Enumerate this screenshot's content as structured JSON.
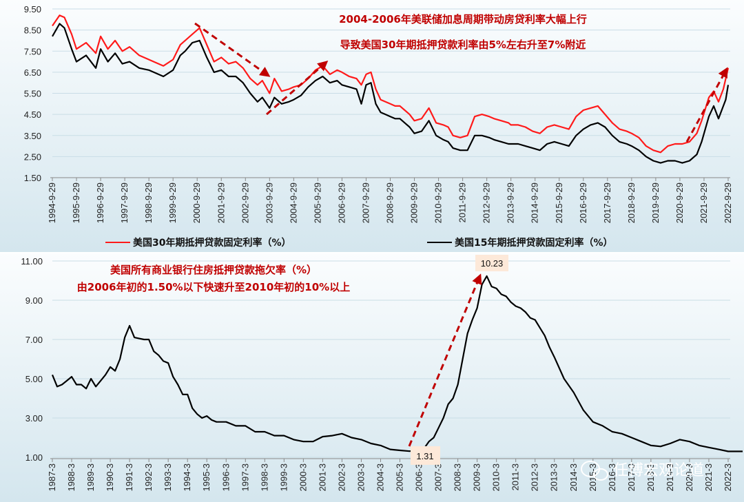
{
  "watermark": "任博宏观论道",
  "colors": {
    "red": "#ff1a1a",
    "black": "#000000",
    "arrow": "#c00000",
    "grid": "#c9dde6"
  },
  "chart_data": [
    {
      "type": "line",
      "ylim": [
        1.5,
        9.5
      ],
      "yticks": [
        "9.50",
        "8.50",
        "7.50",
        "6.50",
        "5.50",
        "4.50",
        "3.50",
        "2.50",
        "1.50"
      ],
      "categories": [
        "1994-9-29",
        "1995-9-29",
        "1996-9-29",
        "1997-9-29",
        "1998-9-29",
        "1999-9-29",
        "2000-9-29",
        "2001-9-29",
        "2002-9-29",
        "2003-9-29",
        "2004-9-29",
        "2005-9-29",
        "2006-9-29",
        "2007-9-29",
        "2008-9-29",
        "2009-9-29",
        "2010-9-29",
        "2011-9-29",
        "2012-9-29",
        "2013-9-29",
        "2014-9-29",
        "2015-9-29",
        "2016-9-29",
        "2017-9-29",
        "2018-9-29",
        "2019-9-29",
        "2020-9-29",
        "2021-9-29",
        "2022-9-29"
      ],
      "annotation": [
        "2004-2006年美联储加息周期带动房贷利率大幅上行",
        "导致美国30年期抵押贷款利率由5%左右升至7%附近"
      ],
      "series": [
        {
          "name": "美国30年期抵押贷款固定利率（%）",
          "color": "#ff1a1a",
          "x": [
            0,
            0.3,
            0.5,
            0.8,
            1.0,
            1.4,
            1.8,
            2.0,
            2.3,
            2.6,
            2.9,
            3.2,
            3.6,
            4.0,
            4.2,
            4.6,
            5.0,
            5.3,
            5.5,
            5.8,
            6.1,
            6.4,
            6.7,
            7.0,
            7.3,
            7.6,
            7.9,
            8.2,
            8.5,
            8.7,
            9.0,
            9.2,
            9.5,
            9.8,
            10.0,
            10.3,
            10.6,
            10.9,
            11.2,
            11.5,
            11.8,
            12.0,
            12.3,
            12.6,
            12.8,
            13.0,
            13.2,
            13.4,
            13.6,
            13.8,
            14.0,
            14.2,
            14.4,
            14.6,
            14.8,
            15.0,
            15.3,
            15.6,
            15.9,
            16.2,
            16.4,
            16.6,
            16.9,
            17.2,
            17.5,
            17.8,
            18.1,
            18.3,
            18.6,
            18.9,
            19.0,
            19.3,
            19.6,
            19.9,
            20.2,
            20.5,
            20.8,
            21.1,
            21.4,
            21.7,
            22.0,
            22.3,
            22.6,
            22.9,
            23.2,
            23.5,
            23.8,
            24.0,
            24.3,
            24.6,
            24.9,
            25.2,
            25.5,
            25.8,
            26.1,
            26.4,
            26.7,
            26.9,
            27.2,
            27.4,
            27.6,
            27.8,
            27.9,
            28.0
          ],
          "values": [
            8.7,
            9.2,
            9.1,
            8.3,
            7.6,
            7.9,
            7.4,
            8.2,
            7.6,
            8.0,
            7.5,
            7.7,
            7.3,
            7.1,
            7.0,
            6.8,
            7.1,
            7.8,
            8.0,
            8.3,
            8.6,
            7.8,
            7.0,
            7.2,
            6.9,
            7.0,
            6.7,
            6.2,
            5.9,
            6.1,
            5.5,
            6.2,
            5.6,
            5.7,
            5.8,
            5.9,
            6.2,
            6.6,
            6.8,
            6.4,
            6.6,
            6.5,
            6.3,
            6.2,
            5.9,
            6.4,
            6.5,
            5.7,
            5.2,
            5.1,
            5.0,
            4.9,
            4.9,
            4.7,
            4.5,
            4.2,
            4.3,
            4.8,
            4.1,
            4.0,
            3.9,
            3.5,
            3.4,
            3.5,
            4.4,
            4.5,
            4.4,
            4.3,
            4.2,
            4.1,
            4.0,
            4.0,
            3.9,
            3.7,
            3.6,
            3.9,
            4.0,
            3.9,
            3.8,
            4.4,
            4.7,
            4.8,
            4.9,
            4.5,
            4.1,
            3.8,
            3.7,
            3.6,
            3.4,
            3.0,
            2.8,
            2.7,
            3.0,
            3.1,
            3.1,
            3.2,
            3.6,
            4.2,
            5.3,
            5.6,
            5.1,
            5.7,
            6.2,
            6.7
          ]
        },
        {
          "name": "美国15年期抵押贷款固定利率（%）",
          "color": "#000000",
          "x": [
            0,
            0.3,
            0.5,
            0.8,
            1.0,
            1.4,
            1.8,
            2.0,
            2.3,
            2.6,
            2.9,
            3.2,
            3.6,
            4.0,
            4.2,
            4.6,
            5.0,
            5.3,
            5.5,
            5.8,
            6.1,
            6.4,
            6.7,
            7.0,
            7.3,
            7.6,
            7.9,
            8.2,
            8.5,
            8.7,
            9.0,
            9.2,
            9.5,
            9.8,
            10.0,
            10.3,
            10.6,
            10.9,
            11.2,
            11.5,
            11.8,
            12.0,
            12.3,
            12.6,
            12.8,
            13.0,
            13.2,
            13.4,
            13.6,
            13.8,
            14.0,
            14.2,
            14.4,
            14.6,
            14.8,
            15.0,
            15.3,
            15.6,
            15.9,
            16.2,
            16.4,
            16.6,
            16.9,
            17.2,
            17.5,
            17.8,
            18.1,
            18.3,
            18.6,
            18.9,
            19.0,
            19.3,
            19.6,
            19.9,
            20.2,
            20.5,
            20.8,
            21.1,
            21.4,
            21.7,
            22.0,
            22.3,
            22.6,
            22.9,
            23.2,
            23.5,
            23.8,
            24.0,
            24.3,
            24.6,
            24.9,
            25.2,
            25.5,
            25.8,
            26.1,
            26.4,
            26.7,
            26.9,
            27.2,
            27.4,
            27.6,
            27.8,
            27.9,
            28.0
          ],
          "values": [
            8.2,
            8.8,
            8.6,
            7.6,
            7.0,
            7.3,
            6.7,
            7.6,
            7.0,
            7.4,
            6.9,
            7.0,
            6.7,
            6.6,
            6.5,
            6.3,
            6.6,
            7.3,
            7.5,
            7.9,
            8.0,
            7.2,
            6.5,
            6.6,
            6.3,
            6.3,
            6.0,
            5.5,
            5.1,
            5.3,
            4.8,
            5.3,
            5.0,
            5.1,
            5.2,
            5.4,
            5.8,
            6.1,
            6.3,
            6.0,
            6.1,
            5.9,
            5.8,
            5.7,
            5.0,
            5.9,
            6.0,
            5.0,
            4.6,
            4.5,
            4.4,
            4.3,
            4.3,
            4.1,
            3.9,
            3.6,
            3.7,
            4.2,
            3.5,
            3.3,
            3.2,
            2.9,
            2.8,
            2.8,
            3.5,
            3.5,
            3.4,
            3.3,
            3.2,
            3.1,
            3.1,
            3.1,
            3.0,
            2.9,
            2.8,
            3.1,
            3.2,
            3.1,
            3.0,
            3.5,
            3.8,
            4.0,
            4.1,
            3.9,
            3.5,
            3.2,
            3.1,
            3.0,
            2.8,
            2.5,
            2.3,
            2.2,
            2.3,
            2.3,
            2.2,
            2.3,
            2.6,
            3.2,
            4.4,
            4.9,
            4.3,
            4.9,
            5.2,
            5.9
          ]
        }
      ]
    },
    {
      "type": "line",
      "ylim": [
        1.0,
        11.0
      ],
      "yticks": [
        "11.00",
        "9.00",
        "7.00",
        "5.00",
        "3.00",
        "1.00"
      ],
      "categories": [
        "1987-3",
        "1988-3",
        "1989-3",
        "1990-3",
        "1991-3",
        "1992-3",
        "1993-3",
        "1994-3",
        "1995-3",
        "1996-3",
        "1997-3",
        "1998-3",
        "1999-3",
        "2000-3",
        "2001-3",
        "2002-3",
        "2003-3",
        "2004-3",
        "2005-3",
        "2006-3",
        "2007-3",
        "2008-3",
        "2009-3",
        "2010-3",
        "2011-3",
        "2012-3",
        "2013-3",
        "2014-3",
        "2015-3",
        "2016-3",
        "2017-3",
        "2018-3",
        "2019-3",
        "2020-3",
        "2021-3",
        "2022-3"
      ],
      "annotation": [
        "美国所有商业银行住房抵押贷款拖欠率（%）",
        "由2006年初的1.50%以下快速升至2010年初的10%以上"
      ],
      "labels": {
        "low": "1.31",
        "peak": "10.23"
      },
      "series": [
        {
          "name": "美国所有商业银行住房抵押贷款拖欠率（%）",
          "color": "#000000",
          "x": [
            0,
            0.25,
            0.5,
            0.75,
            1.0,
            1.25,
            1.5,
            1.75,
            2.0,
            2.25,
            2.5,
            2.75,
            3.0,
            3.25,
            3.5,
            3.75,
            4.0,
            4.25,
            4.5,
            4.75,
            5.0,
            5.25,
            5.5,
            5.75,
            6.0,
            6.25,
            6.5,
            6.75,
            7.0,
            7.25,
            7.5,
            7.75,
            8.0,
            8.25,
            8.5,
            8.75,
            9.0,
            9.5,
            10.0,
            10.5,
            11.0,
            11.5,
            12.0,
            12.5,
            13.0,
            13.5,
            14.0,
            14.5,
            15.0,
            15.5,
            16.0,
            16.5,
            17.0,
            17.5,
            18.0,
            18.5,
            19.0,
            19.25,
            19.5,
            19.75,
            20.0,
            20.25,
            20.5,
            20.75,
            21.0,
            21.25,
            21.5,
            21.75,
            22.0,
            22.25,
            22.5,
            22.75,
            23.0,
            23.25,
            23.5,
            23.75,
            24.0,
            24.25,
            24.5,
            24.75,
            25.0,
            25.25,
            25.5,
            25.75,
            26.0,
            26.5,
            27.0,
            27.5,
            28.0,
            28.5,
            29.0,
            29.5,
            30.0,
            30.5,
            31.0,
            31.5,
            32.0,
            32.5,
            33.0,
            33.5,
            34.0,
            34.5,
            35.0,
            35.5,
            35.75
          ],
          "values": [
            5.2,
            4.6,
            4.7,
            4.9,
            5.1,
            4.7,
            4.7,
            4.5,
            5.0,
            4.6,
            4.9,
            5.2,
            5.6,
            5.4,
            6.0,
            7.1,
            7.7,
            7.1,
            7.05,
            7.0,
            7.0,
            6.4,
            6.2,
            5.9,
            5.8,
            5.1,
            4.7,
            4.2,
            4.2,
            3.5,
            3.2,
            3.0,
            3.1,
            2.9,
            2.8,
            2.8,
            2.8,
            2.6,
            2.6,
            2.3,
            2.3,
            2.1,
            2.1,
            1.9,
            1.8,
            1.8,
            2.05,
            2.1,
            2.2,
            2.0,
            1.9,
            1.7,
            1.6,
            1.4,
            1.35,
            1.31,
            1.35,
            1.45,
            1.8,
            2.0,
            2.5,
            3.0,
            3.7,
            4.0,
            4.7,
            6.0,
            7.3,
            8.0,
            8.6,
            9.8,
            10.23,
            9.7,
            9.6,
            9.3,
            9.2,
            8.9,
            8.7,
            8.6,
            8.4,
            8.1,
            8.0,
            7.6,
            7.2,
            6.6,
            6.1,
            5.0,
            4.3,
            3.4,
            2.8,
            2.6,
            2.3,
            2.2,
            2.0,
            1.8,
            1.6,
            1.55,
            1.7,
            1.9,
            1.8,
            1.6,
            1.5,
            1.4,
            1.3,
            1.3,
            1.3
          ]
        }
      ]
    }
  ],
  "legend": {
    "red_label": "美国30年期抵押贷款固定利率（%）",
    "black_label": "美国15年期抵押贷款固定利率（%）"
  }
}
